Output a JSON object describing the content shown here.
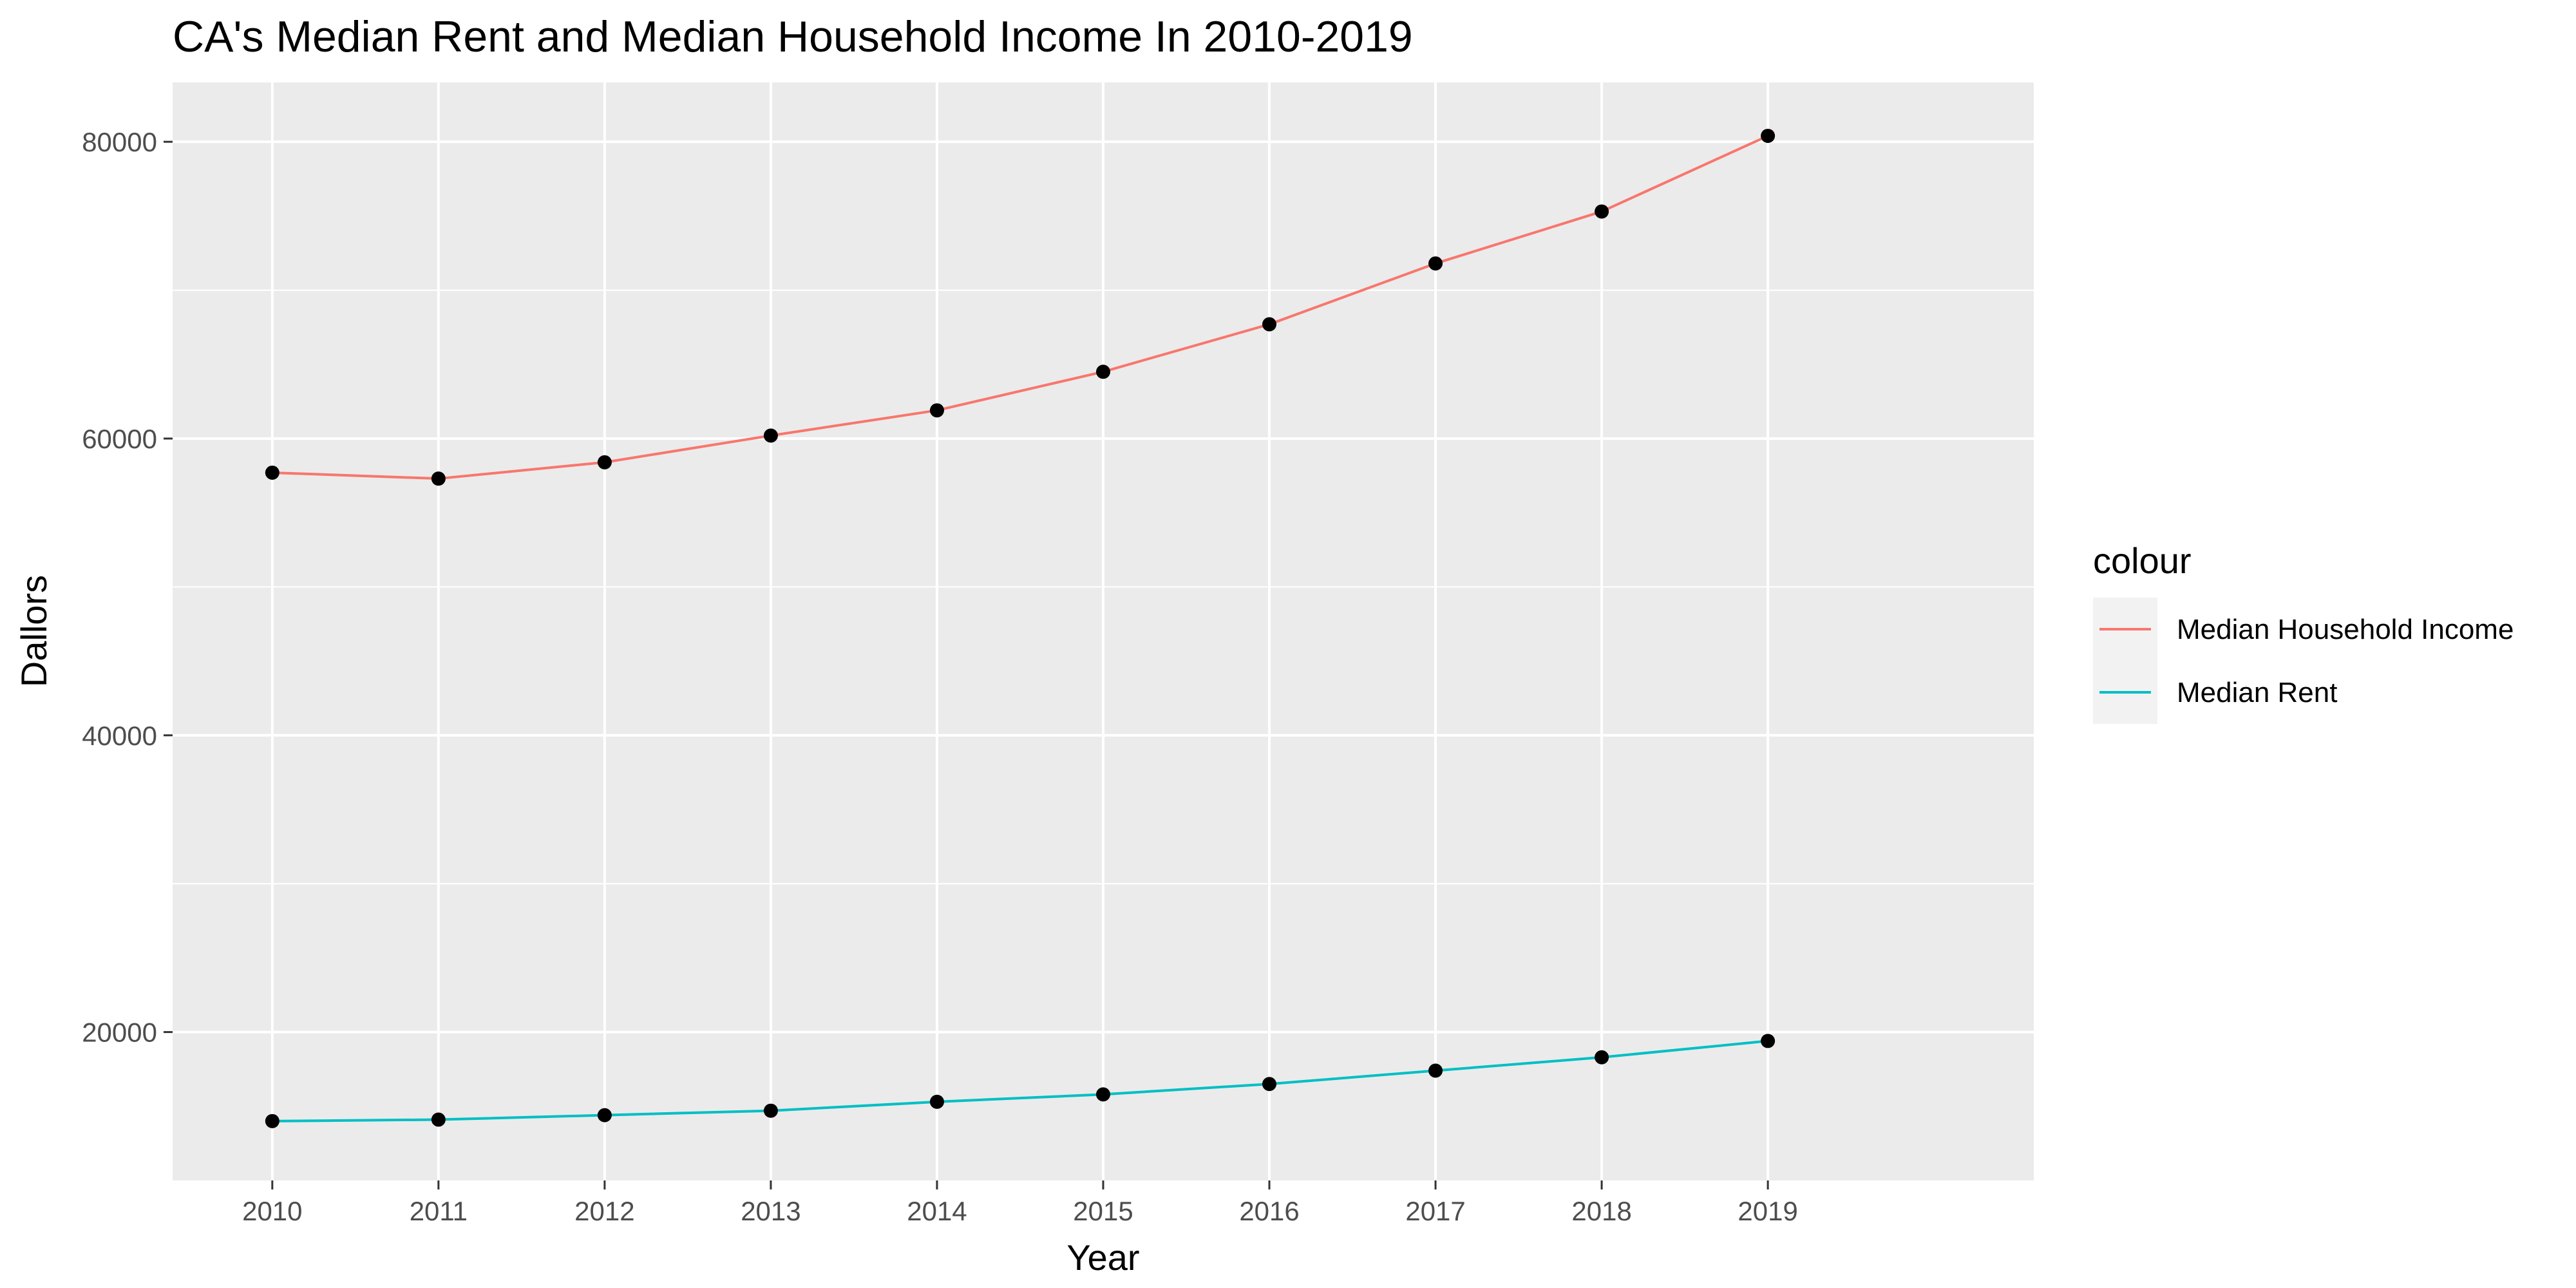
{
  "chart_data": {
    "type": "line",
    "title": "CA's Median Rent and Median Household Income In 2010-2019",
    "xlabel": "Year",
    "ylabel": "Dallors",
    "x": [
      2010,
      2011,
      2012,
      2013,
      2014,
      2015,
      2016,
      2017,
      2018,
      2019
    ],
    "xlim": [
      2009.4,
      2020.6
    ],
    "ylim": [
      10000,
      84000
    ],
    "y_major_ticks": [
      20000,
      40000,
      60000,
      80000
    ],
    "y_minor_ticks": [
      30000,
      50000,
      70000
    ],
    "grid": true,
    "panel_background": "#ebebeb",
    "grid_color": "#ffffff",
    "point_color": "#000000",
    "series": [
      {
        "name": "Median Household Income",
        "color": "#f8766d",
        "values": [
          57700,
          57300,
          58400,
          60200,
          61900,
          64500,
          67700,
          71800,
          75300,
          80400
        ]
      },
      {
        "name": "Median Rent",
        "color": "#00bfc4",
        "values": [
          14000,
          14100,
          14400,
          14700,
          15300,
          15800,
          16500,
          17400,
          18300,
          19400
        ]
      }
    ],
    "legend": {
      "title": "colour",
      "position": "right"
    }
  }
}
